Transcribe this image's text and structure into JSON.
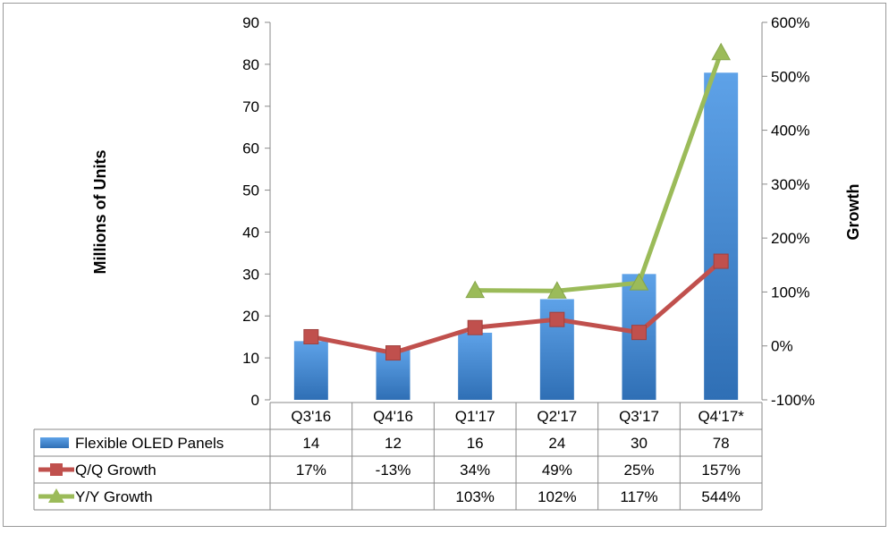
{
  "chart_data": {
    "type": "bar",
    "categories": [
      "Q3'16",
      "Q4'16",
      "Q1'17",
      "Q2'17",
      "Q3'17",
      "Q4'17*"
    ],
    "ylabel": "Millions of Units",
    "y2label": "Growth",
    "ylim": [
      0,
      90
    ],
    "y_ticks": [
      "0",
      "10",
      "20",
      "30",
      "40",
      "50",
      "60",
      "70",
      "80",
      "90"
    ],
    "y2lim": [
      -100,
      600
    ],
    "y2_ticks": [
      "-100%",
      "0%",
      "100%",
      "200%",
      "300%",
      "400%",
      "500%",
      "600%"
    ],
    "grid": false,
    "legend": "data-table",
    "series": [
      {
        "name": "Flexible OLED Panels",
        "kind": "bar",
        "axis": "left",
        "color": "#4a8fd6",
        "values": [
          14,
          12,
          16,
          24,
          30,
          78
        ],
        "labels": [
          "14",
          "12",
          "16",
          "24",
          "30",
          "78"
        ]
      },
      {
        "name": "Q/Q Growth",
        "kind": "line",
        "marker": "square",
        "axis": "right",
        "color": "#c0504d",
        "values": [
          17,
          -13,
          34,
          49,
          25,
          157
        ],
        "labels": [
          "17%",
          "-13%",
          "34%",
          "49%",
          "25%",
          "157%"
        ]
      },
      {
        "name": "Y/Y Growth",
        "kind": "line",
        "marker": "triangle",
        "axis": "right",
        "color": "#9bbb59",
        "values": [
          null,
          null,
          103,
          102,
          117,
          544
        ],
        "labels": [
          "",
          "",
          "103%",
          "102%",
          "117%",
          "544%"
        ]
      }
    ]
  }
}
